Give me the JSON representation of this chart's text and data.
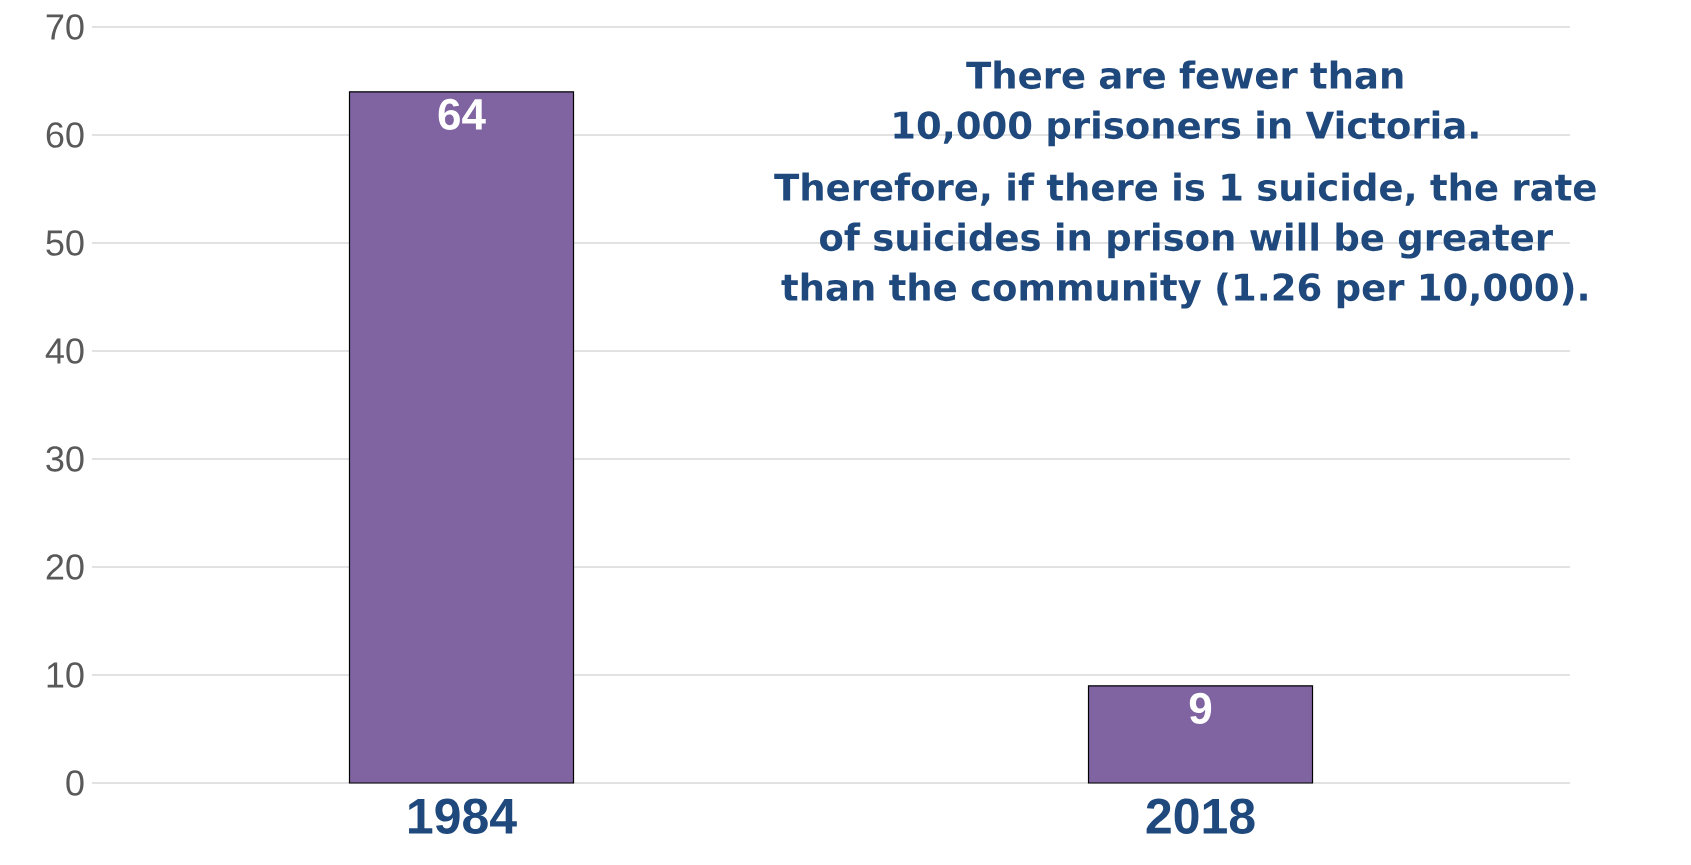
{
  "chart_data": {
    "type": "bar",
    "categories": [
      "1984",
      "2018"
    ],
    "values": [
      64,
      9
    ],
    "color": "#8064a2",
    "ylim": [
      0,
      70
    ],
    "yticks": [
      0,
      10,
      20,
      30,
      40,
      50,
      60,
      70
    ],
    "grid": "y",
    "data_labels": true,
    "annotations": [
      "There are fewer than 10,000 prisoners in Victoria.",
      "Therefore, if there is 1 suicide, the rate of suicides in prison will be greater than the community (1.26 per 10,000)."
    ]
  }
}
